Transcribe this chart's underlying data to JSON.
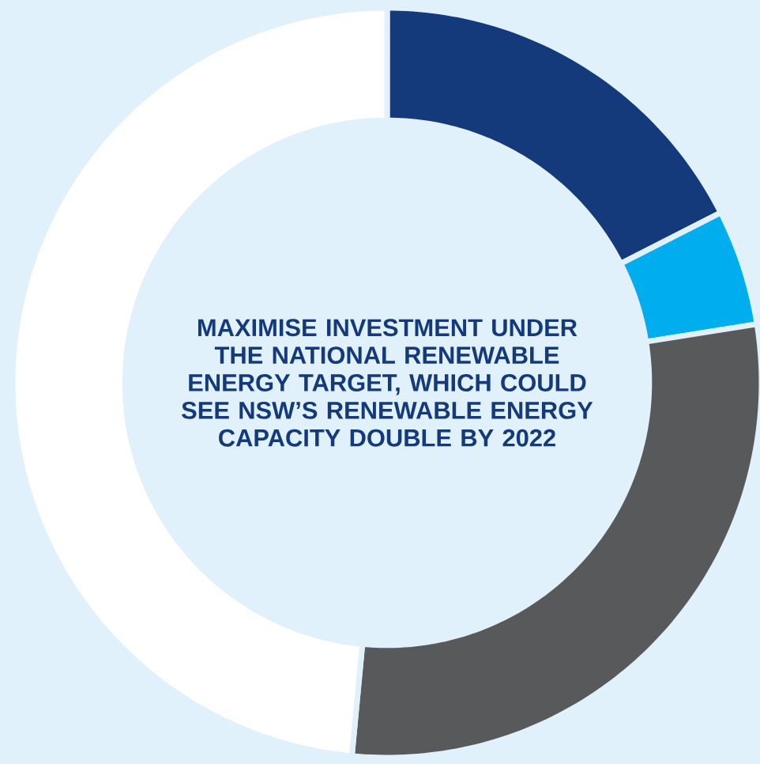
{
  "chart_data": {
    "type": "donut",
    "title": "MAXIMISE INVESTMENT UNDER THE NATIONAL RENEWABLE ENERGY TARGET, WHICH COULD SEE NSW’S RENEWABLE ENERGY CAPACITY DOUBLE BY 2022",
    "categories": [
      null,
      null,
      null,
      null
    ],
    "values": [
      17.5,
      5,
      29,
      48.5
    ],
    "colors": [
      "#143a7b",
      "#00aeef",
      "#58595b",
      "#ffffff"
    ]
  }
}
